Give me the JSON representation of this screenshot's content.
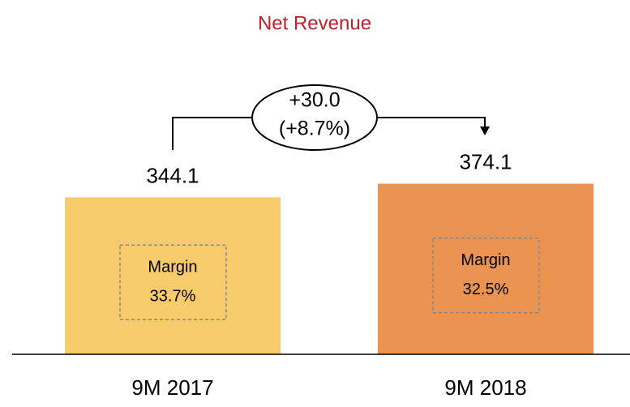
{
  "chart_data": {
    "type": "bar",
    "title": "Net Revenue",
    "categories": [
      "9M 2017",
      "9M 2018"
    ],
    "series": [
      {
        "colors": [
          "#f7cb6c",
          "#eb9451"
        ],
        "values": [
          344.1,
          374.1
        ]
      }
    ],
    "annotations": {
      "delta": [
        "+30.0",
        "(+8.7%)"
      ],
      "margins": [
        [
          "Margin",
          "33.7%"
        ],
        [
          "Margin",
          "32.5%"
        ]
      ]
    }
  }
}
